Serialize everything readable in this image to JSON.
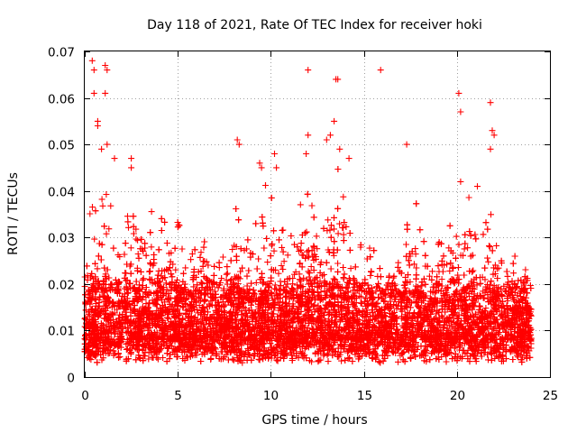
{
  "chart_data": {
    "type": "scatter",
    "title": "Day 118 of 2021, Rate Of TEC Index for receiver hoki",
    "xlabel": "GPS time / hours",
    "ylabel": "ROTI / TECUs",
    "xlim": [
      0,
      25
    ],
    "ylim": [
      0,
      0.07
    ],
    "xticks": [
      0,
      5,
      10,
      15,
      20,
      25
    ],
    "xtick_labels": [
      "0",
      "5",
      "10",
      "15",
      "20",
      "25"
    ],
    "yticks": [
      0,
      0.01,
      0.02,
      0.03,
      0.04,
      0.05,
      0.06,
      0.07
    ],
    "ytick_labels": [
      "0",
      "0.01",
      "0.02",
      "0.03",
      "0.04",
      "0.05",
      "0.06",
      "0.07"
    ],
    "grid": true,
    "marker": "plus",
    "color": "#ff0000",
    "data_span_hours": [
      0,
      24
    ],
    "baseline_band": [
      0.005,
      0.02
    ],
    "notable_points": [
      {
        "x": 0.4,
        "y": 0.068
      },
      {
        "x": 0.5,
        "y": 0.066
      },
      {
        "x": 0.5,
        "y": 0.061
      },
      {
        "x": 1.1,
        "y": 0.067
      },
      {
        "x": 1.2,
        "y": 0.066
      },
      {
        "x": 1.1,
        "y": 0.061
      },
      {
        "x": 0.7,
        "y": 0.055
      },
      {
        "x": 0.7,
        "y": 0.054
      },
      {
        "x": 1.2,
        "y": 0.05
      },
      {
        "x": 0.9,
        "y": 0.049
      },
      {
        "x": 1.6,
        "y": 0.047
      },
      {
        "x": 2.5,
        "y": 0.047
      },
      {
        "x": 2.5,
        "y": 0.045
      },
      {
        "x": 8.2,
        "y": 0.051
      },
      {
        "x": 8.3,
        "y": 0.05
      },
      {
        "x": 9.4,
        "y": 0.046
      },
      {
        "x": 9.5,
        "y": 0.045
      },
      {
        "x": 10.2,
        "y": 0.048
      },
      {
        "x": 10.3,
        "y": 0.045
      },
      {
        "x": 12.0,
        "y": 0.066
      },
      {
        "x": 12.0,
        "y": 0.052
      },
      {
        "x": 11.9,
        "y": 0.048
      },
      {
        "x": 13.5,
        "y": 0.064
      },
      {
        "x": 13.6,
        "y": 0.064
      },
      {
        "x": 13.4,
        "y": 0.055
      },
      {
        "x": 13.2,
        "y": 0.052
      },
      {
        "x": 13.0,
        "y": 0.051
      },
      {
        "x": 13.7,
        "y": 0.049
      },
      {
        "x": 14.2,
        "y": 0.047
      },
      {
        "x": 15.9,
        "y": 0.066
      },
      {
        "x": 17.3,
        "y": 0.05
      },
      {
        "x": 20.1,
        "y": 0.061
      },
      {
        "x": 20.2,
        "y": 0.057
      },
      {
        "x": 20.2,
        "y": 0.042
      },
      {
        "x": 21.8,
        "y": 0.059
      },
      {
        "x": 21.9,
        "y": 0.053
      },
      {
        "x": 22.0,
        "y": 0.052
      },
      {
        "x": 21.8,
        "y": 0.049
      },
      {
        "x": 21.1,
        "y": 0.041
      }
    ],
    "activity_profile": [
      {
        "x": 0.0,
        "peak": 0.027
      },
      {
        "x": 0.5,
        "peak": 0.043
      },
      {
        "x": 1.0,
        "peak": 0.045
      },
      {
        "x": 1.5,
        "peak": 0.035
      },
      {
        "x": 2.0,
        "peak": 0.03
      },
      {
        "x": 2.5,
        "peak": 0.04
      },
      {
        "x": 3.0,
        "peak": 0.037
      },
      {
        "x": 3.5,
        "peak": 0.034
      },
      {
        "x": 4.0,
        "peak": 0.035
      },
      {
        "x": 4.5,
        "peak": 0.034
      },
      {
        "x": 5.0,
        "peak": 0.036
      },
      {
        "x": 5.5,
        "peak": 0.031
      },
      {
        "x": 6.0,
        "peak": 0.03
      },
      {
        "x": 6.5,
        "peak": 0.034
      },
      {
        "x": 7.0,
        "peak": 0.028
      },
      {
        "x": 7.5,
        "peak": 0.03
      },
      {
        "x": 8.0,
        "peak": 0.038
      },
      {
        "x": 8.5,
        "peak": 0.033
      },
      {
        "x": 9.0,
        "peak": 0.032
      },
      {
        "x": 9.5,
        "peak": 0.039
      },
      {
        "x": 10.0,
        "peak": 0.041
      },
      {
        "x": 10.5,
        "peak": 0.037
      },
      {
        "x": 11.0,
        "peak": 0.033
      },
      {
        "x": 11.5,
        "peak": 0.036
      },
      {
        "x": 12.0,
        "peak": 0.04
      },
      {
        "x": 12.5,
        "peak": 0.038
      },
      {
        "x": 13.0,
        "peak": 0.042
      },
      {
        "x": 13.5,
        "peak": 0.045
      },
      {
        "x": 14.0,
        "peak": 0.04
      },
      {
        "x": 14.5,
        "peak": 0.032
      },
      {
        "x": 15.0,
        "peak": 0.029
      },
      {
        "x": 15.5,
        "peak": 0.031
      },
      {
        "x": 16.0,
        "peak": 0.028
      },
      {
        "x": 16.5,
        "peak": 0.026
      },
      {
        "x": 17.0,
        "peak": 0.031
      },
      {
        "x": 17.5,
        "peak": 0.035
      },
      {
        "x": 18.0,
        "peak": 0.037
      },
      {
        "x": 18.5,
        "peak": 0.033
      },
      {
        "x": 19.0,
        "peak": 0.035
      },
      {
        "x": 19.5,
        "peak": 0.031
      },
      {
        "x": 20.0,
        "peak": 0.034
      },
      {
        "x": 20.5,
        "peak": 0.038
      },
      {
        "x": 21.0,
        "peak": 0.038
      },
      {
        "x": 21.5,
        "peak": 0.036
      },
      {
        "x": 22.0,
        "peak": 0.035
      },
      {
        "x": 22.5,
        "peak": 0.03
      },
      {
        "x": 23.0,
        "peak": 0.026
      },
      {
        "x": 23.5,
        "peak": 0.024
      },
      {
        "x": 24.0,
        "peak": 0.025
      }
    ]
  }
}
